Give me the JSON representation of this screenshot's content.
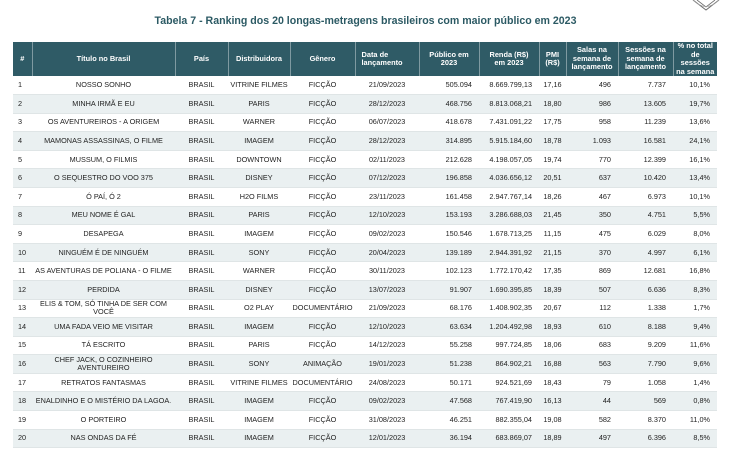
{
  "title": "Tabela 7 - Ranking dos 20 longas-metragens brasileiros com maior público em 2023",
  "headers": {
    "rank": "#",
    "titulo": "Título no Brasil",
    "pais": "País",
    "distribuidora": "Distribuidora",
    "genero": "Gênero",
    "data_l1": "Data de",
    "data_l2": "lançamento",
    "publico_l1": "Público em",
    "publico_l2": "2023",
    "renda_l1": "Renda (R$)",
    "renda_l2": "em 2023",
    "pmi_l1": "PMI",
    "pmi_l2": "(R$)",
    "salas_l1": "Salas na",
    "salas_l2": "semana de",
    "salas_l3": "lançamento",
    "sessoes_l1": "Sessões na",
    "sessoes_l2": "semana de",
    "sessoes_l3": "lançamento",
    "pct_l1": "% no total",
    "pct_l2": "de sessões",
    "pct_l3": "na semana"
  },
  "rows": [
    {
      "rank": "1",
      "titulo": "NOSSO SONHO",
      "pais": "BRASIL",
      "distribuidora": "VITRINE FILMES",
      "genero": "FICÇÃO",
      "data": "21/09/2023",
      "publico": "505.094",
      "renda": "8.669.799,13",
      "pmi": "17,16",
      "salas": "496",
      "sessoes": "7.737",
      "pct": "10,1%"
    },
    {
      "rank": "2",
      "titulo": "MINHA IRMÃ E EU",
      "pais": "BRASIL",
      "distribuidora": "PARIS",
      "genero": "FICÇÃO",
      "data": "28/12/2023",
      "publico": "468.756",
      "renda": "8.813.068,21",
      "pmi": "18,80",
      "salas": "986",
      "sessoes": "13.605",
      "pct": "19,7%"
    },
    {
      "rank": "3",
      "titulo": "OS AVENTUREIROS - A ORIGEM",
      "pais": "BRASIL",
      "distribuidora": "WARNER",
      "genero": "FICÇÃO",
      "data": "06/07/2023",
      "publico": "418.678",
      "renda": "7.431.091,22",
      "pmi": "17,75",
      "salas": "958",
      "sessoes": "11.239",
      "pct": "13,6%"
    },
    {
      "rank": "4",
      "titulo": "MAMONAS ASSASSINAS, O FILME",
      "pais": "BRASIL",
      "distribuidora": "IMAGEM",
      "genero": "FICÇÃO",
      "data": "28/12/2023",
      "publico": "314.895",
      "renda": "5.915.184,60",
      "pmi": "18,78",
      "salas": "1.093",
      "sessoes": "16.581",
      "pct": "24,1%"
    },
    {
      "rank": "5",
      "titulo": "MUSSUM, O FILMIS",
      "pais": "BRASIL",
      "distribuidora": "DOWNTOWN",
      "genero": "FICÇÃO",
      "data": "02/11/2023",
      "publico": "212.628",
      "renda": "4.198.057,05",
      "pmi": "19,74",
      "salas": "770",
      "sessoes": "12.399",
      "pct": "16,1%"
    },
    {
      "rank": "6",
      "titulo": "O SEQUESTRO DO VOO 375",
      "pais": "BRASIL",
      "distribuidora": "DISNEY",
      "genero": "FICÇÃO",
      "data": "07/12/2023",
      "publico": "196.858",
      "renda": "4.036.656,12",
      "pmi": "20,51",
      "salas": "637",
      "sessoes": "10.420",
      "pct": "13,4%"
    },
    {
      "rank": "7",
      "titulo": "Ó PAÍ, Ó 2",
      "pais": "BRASIL",
      "distribuidora": "H2O FILMS",
      "genero": "FICÇÃO",
      "data": "23/11/2023",
      "publico": "161.458",
      "renda": "2.947.767,14",
      "pmi": "18,26",
      "salas": "467",
      "sessoes": "6.973",
      "pct": "10,1%"
    },
    {
      "rank": "8",
      "titulo": "MEU NOME É GAL",
      "pais": "BRASIL",
      "distribuidora": "PARIS",
      "genero": "FICÇÃO",
      "data": "12/10/2023",
      "publico": "153.193",
      "renda": "3.286.688,03",
      "pmi": "21,45",
      "salas": "350",
      "sessoes": "4.751",
      "pct": "5,5%"
    },
    {
      "rank": "9",
      "titulo": "DESAPEGA",
      "pais": "BRASIL",
      "distribuidora": "IMAGEM",
      "genero": "FICÇÃO",
      "data": "09/02/2023",
      "publico": "150.546",
      "renda": "1.678.713,25",
      "pmi": "11,15",
      "salas": "475",
      "sessoes": "6.029",
      "pct": "8,0%"
    },
    {
      "rank": "10",
      "titulo": "NINGUÉM É DE NINGUÉM",
      "pais": "BRASIL",
      "distribuidora": "SONY",
      "genero": "FICÇÃO",
      "data": "20/04/2023",
      "publico": "139.189",
      "renda": "2.944.391,92",
      "pmi": "21,15",
      "salas": "370",
      "sessoes": "4.997",
      "pct": "6,1%"
    },
    {
      "rank": "11",
      "titulo": "AS AVENTURAS DE POLIANA - O FILME",
      "pais": "BRASIL",
      "distribuidora": "WARNER",
      "genero": "FICÇÃO",
      "data": "30/11/2023",
      "publico": "102.123",
      "renda": "1.772.170,42",
      "pmi": "17,35",
      "salas": "869",
      "sessoes": "12.681",
      "pct": "16,8%"
    },
    {
      "rank": "12",
      "titulo": "PERDIDA",
      "pais": "BRASIL",
      "distribuidora": "DISNEY",
      "genero": "FICÇÃO",
      "data": "13/07/2023",
      "publico": "91.907",
      "renda": "1.690.395,85",
      "pmi": "18,39",
      "salas": "507",
      "sessoes": "6.636",
      "pct": "8,3%"
    },
    {
      "rank": "13",
      "titulo": "ELIS & TOM, SÓ TINHA DE SER COM VOCÊ",
      "pais": "BRASIL",
      "distribuidora": "O2 PLAY",
      "genero": "DOCUMENTÁRIO",
      "data": "21/09/2023",
      "publico": "68.176",
      "renda": "1.408.902,35",
      "pmi": "20,67",
      "salas": "112",
      "sessoes": "1.338",
      "pct": "1,7%"
    },
    {
      "rank": "14",
      "titulo": "UMA FADA VEIO ME VISITAR",
      "pais": "BRASIL",
      "distribuidora": "IMAGEM",
      "genero": "FICÇÃO",
      "data": "12/10/2023",
      "publico": "63.634",
      "renda": "1.204.492,98",
      "pmi": "18,93",
      "salas": "610",
      "sessoes": "8.188",
      "pct": "9,4%"
    },
    {
      "rank": "15",
      "titulo": "TÁ ESCRITO",
      "pais": "BRASIL",
      "distribuidora": "PARIS",
      "genero": "FICÇÃO",
      "data": "14/12/2023",
      "publico": "55.258",
      "renda": "997.724,85",
      "pmi": "18,06",
      "salas": "683",
      "sessoes": "9.209",
      "pct": "11,6%"
    },
    {
      "rank": "16",
      "titulo": "CHEF JACK, O COZINHEIRO AVENTUREIRO",
      "pais": "BRASIL",
      "distribuidora": "SONY",
      "genero": "ANIMAÇÃO",
      "data": "19/01/2023",
      "publico": "51.238",
      "renda": "864.902,21",
      "pmi": "16,88",
      "salas": "563",
      "sessoes": "7.790",
      "pct": "9,6%"
    },
    {
      "rank": "17",
      "titulo": "RETRATOS FANTASMAS",
      "pais": "BRASIL",
      "distribuidora": "VITRINE FILMES",
      "genero": "DOCUMENTÁRIO",
      "data": "24/08/2023",
      "publico": "50.171",
      "renda": "924.521,69",
      "pmi": "18,43",
      "salas": "79",
      "sessoes": "1.058",
      "pct": "1,4%"
    },
    {
      "rank": "18",
      "titulo": "ENALDINHO E O MISTÉRIO DA LAGOA.",
      "pais": "BRASIL",
      "distribuidora": "IMAGEM",
      "genero": "FICÇÃO",
      "data": "09/02/2023",
      "publico": "47.568",
      "renda": "767.419,90",
      "pmi": "16,13",
      "salas": "44",
      "sessoes": "569",
      "pct": "0,8%"
    },
    {
      "rank": "19",
      "titulo": "O PORTEIRO",
      "pais": "BRASIL",
      "distribuidora": "IMAGEM",
      "genero": "FICÇÃO",
      "data": "31/08/2023",
      "publico": "46.251",
      "renda": "882.355,04",
      "pmi": "19,08",
      "salas": "582",
      "sessoes": "8.370",
      "pct": "11,0%"
    },
    {
      "rank": "20",
      "titulo": "NAS ONDAS DA FÉ",
      "pais": "BRASIL",
      "distribuidora": "IMAGEM",
      "genero": "FICÇÃO",
      "data": "12/01/2023",
      "publico": "36.194",
      "renda": "683.869,07",
      "pmi": "18,89",
      "salas": "497",
      "sessoes": "6.396",
      "pct": "8,5%"
    }
  ]
}
